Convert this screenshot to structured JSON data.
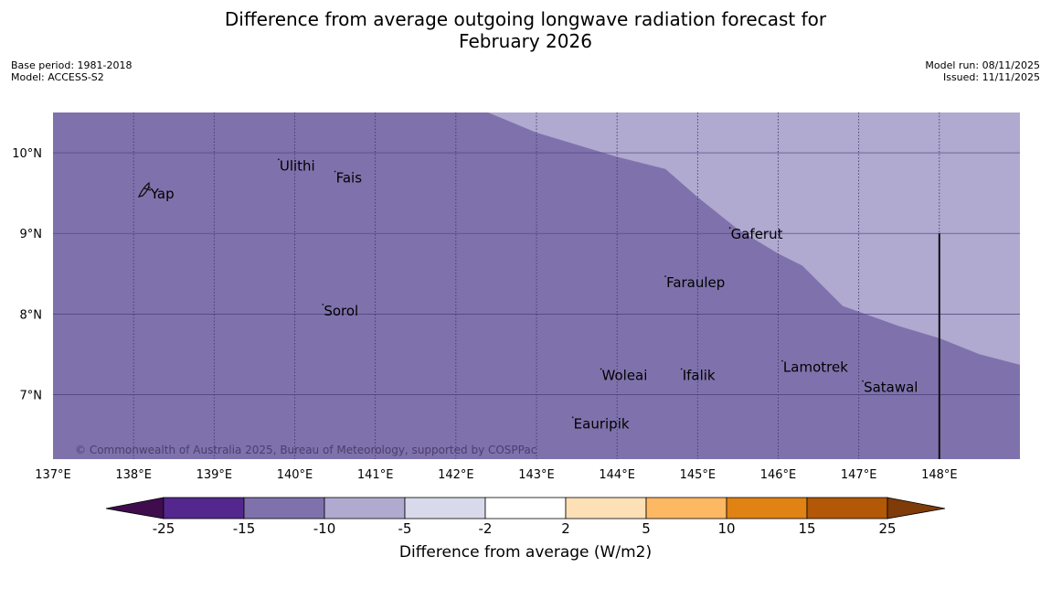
{
  "title": {
    "line1": "Difference from average outgoing longwave radiation forecast for",
    "line2": "February 2026"
  },
  "meta": {
    "base_period": "Base period: 1981-2018",
    "model": "Model: ACCESS-S2",
    "model_run": "Model run: 08/11/2025",
    "issued": "Issued: 11/11/2025"
  },
  "map": {
    "lon_range": [
      137,
      149
    ],
    "lat_range": [
      6.2,
      10.5
    ],
    "lon_ticks": [
      {
        "value": 137,
        "label": "137°E"
      },
      {
        "value": 138,
        "label": "138°E"
      },
      {
        "value": 139,
        "label": "139°E"
      },
      {
        "value": 140,
        "label": "140°E"
      },
      {
        "value": 141,
        "label": "141°E"
      },
      {
        "value": 142,
        "label": "142°E"
      },
      {
        "value": 143,
        "label": "143°E"
      },
      {
        "value": 144,
        "label": "144°E"
      },
      {
        "value": 145,
        "label": "145°E"
      },
      {
        "value": 146,
        "label": "146°E"
      },
      {
        "value": 147,
        "label": "147°E"
      },
      {
        "value": 148,
        "label": "148°E"
      }
    ],
    "lat_ticks": [
      {
        "value": 10,
        "label": "10°N"
      },
      {
        "value": 9,
        "label": "9°N"
      },
      {
        "value": 8,
        "label": "8°N"
      },
      {
        "value": 7,
        "label": "7°N"
      }
    ],
    "field": {
      "main_category": "-15 to -10",
      "main_color": "#7f72ac",
      "secondary_category": "-10 to -5",
      "secondary_color": "#b0a9d0",
      "boundary": [
        [
          142.4,
          10.5
        ],
        [
          143.0,
          10.25
        ],
        [
          143.5,
          10.1
        ],
        [
          144.0,
          9.95
        ],
        [
          144.6,
          9.8
        ],
        [
          145.0,
          9.45
        ],
        [
          145.5,
          9.05
        ],
        [
          146.0,
          8.75
        ],
        [
          146.3,
          8.6
        ],
        [
          146.8,
          8.1
        ],
        [
          147.5,
          7.85
        ],
        [
          148.0,
          7.7
        ],
        [
          148.5,
          7.5
        ],
        [
          149.0,
          7.37
        ]
      ]
    },
    "places": [
      {
        "name": "Ulithi",
        "lon": 139.8,
        "lat": 9.85
      },
      {
        "name": "Fais",
        "lon": 140.5,
        "lat": 9.7
      },
      {
        "name": "Yap",
        "lon": 138.2,
        "lat": 9.5
      },
      {
        "name": "Gaferut",
        "lon": 145.4,
        "lat": 9.0
      },
      {
        "name": "Faraulep",
        "lon": 144.6,
        "lat": 8.4
      },
      {
        "name": "Sorol",
        "lon": 140.35,
        "lat": 8.05
      },
      {
        "name": "Lamotrek",
        "lon": 146.05,
        "lat": 7.35
      },
      {
        "name": "Satawal",
        "lon": 147.05,
        "lat": 7.1
      },
      {
        "name": "Woleai",
        "lon": 143.8,
        "lat": 7.25
      },
      {
        "name": "Ifalik",
        "lon": 144.8,
        "lat": 7.25
      },
      {
        "name": "Eauripik",
        "lon": 143.45,
        "lat": 6.65
      }
    ],
    "dateline_segment": {
      "lon": 148.0,
      "lat_from": 6.2,
      "lat_to": 9.0
    },
    "copyright": "© Commonwealth of Australia 2025, Bureau of Meteorology, supported by COSPPac"
  },
  "colorbar": {
    "label": "Difference from average (W/m2)",
    "low_extend_color": "#3f0d4d",
    "high_extend_color": "#7f3b08",
    "bins": [
      {
        "color": "#54278f"
      },
      {
        "color": "#7f72ac"
      },
      {
        "color": "#b0a9d0"
      },
      {
        "color": "#d8d9ea"
      },
      {
        "color": "#ffffff"
      },
      {
        "color": "#fee0b6"
      },
      {
        "color": "#fdb863"
      },
      {
        "color": "#e08214"
      },
      {
        "color": "#b35806"
      }
    ],
    "ticks": [
      "-25",
      "-15",
      "-10",
      "-5",
      "-2",
      "2",
      "5",
      "10",
      "15",
      "25"
    ]
  }
}
